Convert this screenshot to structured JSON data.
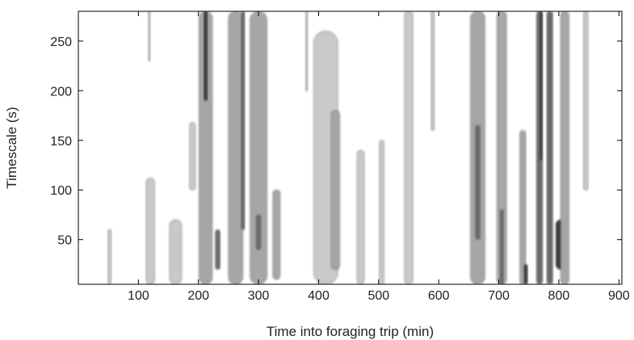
{
  "chart_data": {
    "type": "heatmap",
    "subtype": "filled-contour",
    "title": "",
    "xlabel": "Time into foraging trip (min)",
    "ylabel": "Timescale (s)",
    "xlim": [
      0,
      905
    ],
    "ylim": [
      5,
      280
    ],
    "xticks": [
      100,
      200,
      300,
      400,
      500,
      600,
      700,
      800,
      900
    ],
    "yticks": [
      50,
      100,
      150,
      200,
      250
    ],
    "grid": false,
    "legend": "none",
    "colors": {
      "background": "#ffffff",
      "levels": [
        "#e3e3e3",
        "#c9c9c9",
        "#a6a6a6",
        "#6a6a6a",
        "#3a3a3a"
      ],
      "contour_line": "#555555"
    },
    "bands": [
      {
        "x": 52,
        "w": 6,
        "y0": 5,
        "y1": 60,
        "level": 1
      },
      {
        "x": 118,
        "w": 4,
        "y0": 230,
        "y1": 280,
        "level": 1
      },
      {
        "x": 120,
        "w": 14,
        "y0": 5,
        "y1": 112,
        "level": 1
      },
      {
        "x": 162,
        "w": 20,
        "y0": 5,
        "y1": 70,
        "level": 1
      },
      {
        "x": 190,
        "w": 10,
        "y0": 100,
        "y1": 168,
        "level": 1
      },
      {
        "x": 212,
        "w": 22,
        "y0": 5,
        "y1": 280,
        "level": 2
      },
      {
        "x": 212,
        "w": 6,
        "y0": 190,
        "y1": 280,
        "level": 4
      },
      {
        "x": 232,
        "w": 8,
        "y0": 20,
        "y1": 60,
        "level": 3
      },
      {
        "x": 262,
        "w": 24,
        "y0": 5,
        "y1": 280,
        "level": 2
      },
      {
        "x": 274,
        "w": 6,
        "y0": 60,
        "y1": 280,
        "level": 3
      },
      {
        "x": 300,
        "w": 28,
        "y0": 5,
        "y1": 280,
        "level": 2
      },
      {
        "x": 300,
        "w": 8,
        "y0": 40,
        "y1": 75,
        "level": 3
      },
      {
        "x": 330,
        "w": 12,
        "y0": 10,
        "y1": 100,
        "level": 2
      },
      {
        "x": 380,
        "w": 4,
        "y0": 200,
        "y1": 280,
        "level": 1
      },
      {
        "x": 412,
        "w": 40,
        "y0": 5,
        "y1": 260,
        "level": 1
      },
      {
        "x": 428,
        "w": 14,
        "y0": 20,
        "y1": 180,
        "level": 2
      },
      {
        "x": 470,
        "w": 12,
        "y0": 5,
        "y1": 140,
        "level": 1
      },
      {
        "x": 505,
        "w": 8,
        "y0": 5,
        "y1": 150,
        "level": 1
      },
      {
        "x": 550,
        "w": 14,
        "y0": 5,
        "y1": 280,
        "level": 1
      },
      {
        "x": 590,
        "w": 6,
        "y0": 160,
        "y1": 280,
        "level": 1
      },
      {
        "x": 665,
        "w": 24,
        "y0": 5,
        "y1": 280,
        "level": 2
      },
      {
        "x": 665,
        "w": 8,
        "y0": 50,
        "y1": 165,
        "level": 3
      },
      {
        "x": 705,
        "w": 16,
        "y0": 5,
        "y1": 280,
        "level": 2
      },
      {
        "x": 705,
        "w": 6,
        "y0": 5,
        "y1": 80,
        "level": 3
      },
      {
        "x": 740,
        "w": 10,
        "y0": 5,
        "y1": 160,
        "level": 2
      },
      {
        "x": 745,
        "w": 6,
        "y0": 5,
        "y1": 25,
        "level": 4
      },
      {
        "x": 768,
        "w": 10,
        "y0": 5,
        "y1": 280,
        "level": 3
      },
      {
        "x": 770,
        "w": 4,
        "y0": 130,
        "y1": 280,
        "level": 4
      },
      {
        "x": 785,
        "w": 10,
        "y0": 5,
        "y1": 280,
        "level": 3
      },
      {
        "x": 803,
        "w": 16,
        "y0": 20,
        "y1": 70,
        "level": 4
      },
      {
        "x": 810,
        "w": 14,
        "y0": 5,
        "y1": 280,
        "level": 2
      },
      {
        "x": 845,
        "w": 8,
        "y0": 100,
        "y1": 280,
        "level": 1
      }
    ]
  }
}
